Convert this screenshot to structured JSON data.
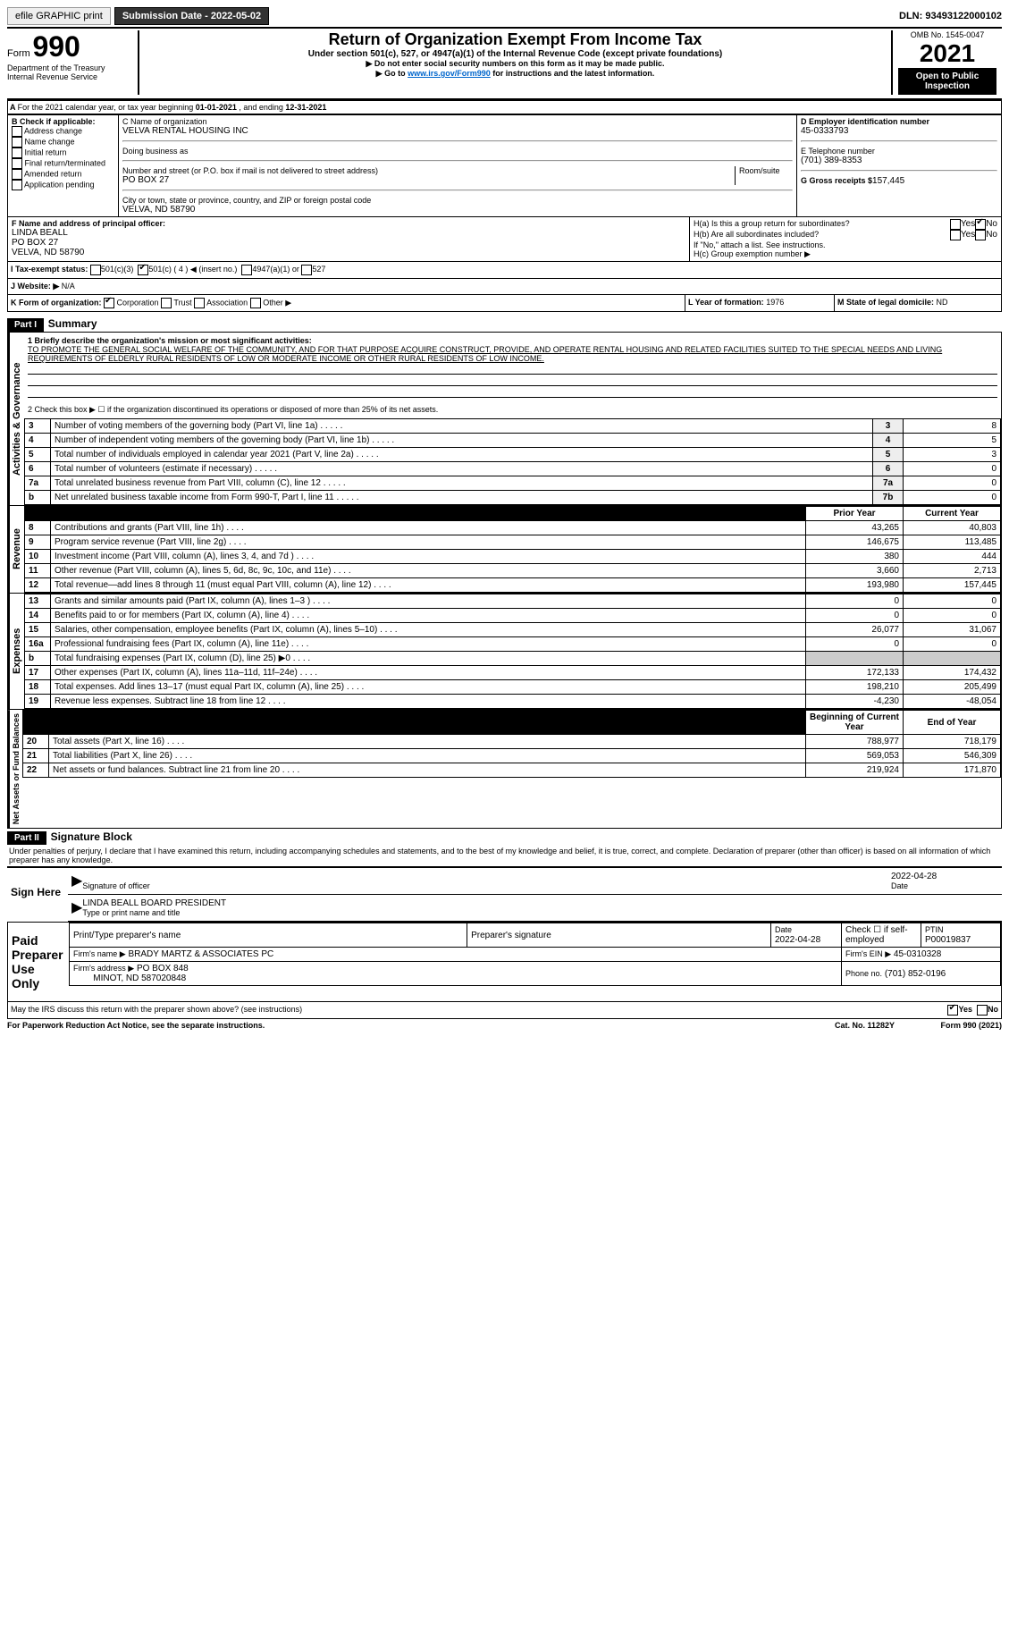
{
  "topbar": {
    "efile": "efile GRAPHIC print",
    "submission_label": "Submission Date - 2022-05-02",
    "dln": "DLN: 93493122000102"
  },
  "header": {
    "form": "Form",
    "form_no": "990",
    "omb": "OMB No. 1545-0047",
    "title": "Return of Organization Exempt From Income Tax",
    "sub1": "Under section 501(c), 527, or 4947(a)(1) of the Internal Revenue Code (except private foundations)",
    "sub2": "▶ Do not enter social security numbers on this form as it may be made public.",
    "sub3_pre": "▶ Go to ",
    "sub3_link": "www.irs.gov/Form990",
    "sub3_post": " for instructions and the latest information.",
    "dept": "Department of the Treasury",
    "irs": "Internal Revenue Service",
    "year": "2021",
    "open": "Open to Public Inspection"
  },
  "period": {
    "label": "For the 2021 calendar year, or tax year beginning ",
    "begin": "01-01-2021",
    "mid": " , and ending ",
    "end": "12-31-2021"
  },
  "checkB": {
    "label": "B Check if applicable:",
    "items": [
      "Address change",
      "Name change",
      "Initial return",
      "Final return/terminated",
      "Amended return",
      "Application pending"
    ]
  },
  "boxC": {
    "label": "C Name of organization",
    "name": "VELVA RENTAL HOUSING INC",
    "dba_label": "Doing business as",
    "addr_label": "Number and street (or P.O. box if mail is not delivered to street address)",
    "room": "Room/suite",
    "addr": "PO BOX 27",
    "city_label": "City or town, state or province, country, and ZIP or foreign postal code",
    "city": "VELVA, ND  58790"
  },
  "boxD": {
    "label": "D Employer identification number",
    "val": "45-0333793"
  },
  "boxE": {
    "label": "E Telephone number",
    "val": "(701) 389-8353"
  },
  "boxG": {
    "label": "G Gross receipts $",
    "val": "157,445"
  },
  "boxF": {
    "label": "F Name and address of principal officer:",
    "name": "LINDA BEALL",
    "addr1": "PO BOX 27",
    "addr2": "VELVA, ND  58790"
  },
  "boxH": {
    "a": "H(a)  Is this a group return for subordinates?",
    "b": "H(b)  Are all subordinates included?",
    "b2": "If \"No,\" attach a list. See instructions.",
    "c": "H(c)  Group exemption number ▶",
    "yes": "Yes",
    "no": "No"
  },
  "boxI": {
    "label": "I  Tax-exempt status:",
    "o1": "501(c)(3)",
    "o2": "501(c) ( 4 ) ◀ (insert no.)",
    "o3": "4947(a)(1) or",
    "o4": "527"
  },
  "boxJ": {
    "label": "J  Website: ▶",
    "val": "N/A"
  },
  "boxK": {
    "label": "K Form of organization:",
    "o1": "Corporation",
    "o2": "Trust",
    "o3": "Association",
    "o4": "Other ▶"
  },
  "boxL": {
    "label": "L Year of formation:",
    "val": "1976"
  },
  "boxM": {
    "label": "M State of legal domicile:",
    "val": "ND"
  },
  "part1": {
    "label": "Part I",
    "title": "Summary"
  },
  "mission": {
    "label": "1  Briefly describe the organization's mission or most significant activities:",
    "text": "TO PROMOTE THE GENERAL SOCIAL WELFARE OF THE COMMUNITY, AND FOR THAT PURPOSE ACQUIRE CONSTRUCT, PROVIDE, AND OPERATE RENTAL HOUSING AND RELATED FACILITIES SUITED TO THE SPECIAL NEEDS AND LIVING REQUIREMENTS OF ELDERLY RURAL RESIDENTS OF LOW OR MODERATE INCOME OR OTHER RURAL RESIDENTS OF LOW INCOME."
  },
  "gov": {
    "vert": "Activities & Governance",
    "line2": "2  Check this box ▶ ☐ if the organization discontinued its operations or disposed of more than 25% of its net assets.",
    "rows": [
      {
        "n": "3",
        "t": "Number of voting members of the governing body (Part VI, line 1a)",
        "box": "3",
        "v": "8"
      },
      {
        "n": "4",
        "t": "Number of independent voting members of the governing body (Part VI, line 1b)",
        "box": "4",
        "v": "5"
      },
      {
        "n": "5",
        "t": "Total number of individuals employed in calendar year 2021 (Part V, line 2a)",
        "box": "5",
        "v": "3"
      },
      {
        "n": "6",
        "t": "Total number of volunteers (estimate if necessary)",
        "box": "6",
        "v": "0"
      },
      {
        "n": "7a",
        "t": "Total unrelated business revenue from Part VIII, column (C), line 12",
        "box": "7a",
        "v": "0"
      },
      {
        "n": "b",
        "t": "Net unrelated business taxable income from Form 990-T, Part I, line 11",
        "box": "7b",
        "v": "0"
      }
    ]
  },
  "rev": {
    "vert": "Revenue",
    "prior": "Prior Year",
    "curr": "Current Year",
    "rows": [
      {
        "n": "8",
        "t": "Contributions and grants (Part VIII, line 1h)",
        "p": "43,265",
        "c": "40,803"
      },
      {
        "n": "9",
        "t": "Program service revenue (Part VIII, line 2g)",
        "p": "146,675",
        "c": "113,485"
      },
      {
        "n": "10",
        "t": "Investment income (Part VIII, column (A), lines 3, 4, and 7d )",
        "p": "380",
        "c": "444"
      },
      {
        "n": "11",
        "t": "Other revenue (Part VIII, column (A), lines 5, 6d, 8c, 9c, 10c, and 11e)",
        "p": "3,660",
        "c": "2,713"
      },
      {
        "n": "12",
        "t": "Total revenue—add lines 8 through 11 (must equal Part VIII, column (A), line 12)",
        "p": "193,980",
        "c": "157,445"
      }
    ]
  },
  "exp": {
    "vert": "Expenses",
    "rows": [
      {
        "n": "13",
        "t": "Grants and similar amounts paid (Part IX, column (A), lines 1–3 )",
        "p": "0",
        "c": "0"
      },
      {
        "n": "14",
        "t": "Benefits paid to or for members (Part IX, column (A), line 4)",
        "p": "0",
        "c": "0"
      },
      {
        "n": "15",
        "t": "Salaries, other compensation, employee benefits (Part IX, column (A), lines 5–10)",
        "p": "26,077",
        "c": "31,067"
      },
      {
        "n": "16a",
        "t": "Professional fundraising fees (Part IX, column (A), line 11e)",
        "p": "0",
        "c": "0"
      },
      {
        "n": "b",
        "t": "Total fundraising expenses (Part IX, column (D), line 25) ▶0",
        "p": "",
        "c": ""
      },
      {
        "n": "17",
        "t": "Other expenses (Part IX, column (A), lines 11a–11d, 11f–24e)",
        "p": "172,133",
        "c": "174,432"
      },
      {
        "n": "18",
        "t": "Total expenses. Add lines 13–17 (must equal Part IX, column (A), line 25)",
        "p": "198,210",
        "c": "205,499"
      },
      {
        "n": "19",
        "t": "Revenue less expenses. Subtract line 18 from line 12",
        "p": "-4,230",
        "c": "-48,054"
      }
    ]
  },
  "net": {
    "vert": "Net Assets or Fund Balances",
    "begin": "Beginning of Current Year",
    "end": "End of Year",
    "rows": [
      {
        "n": "20",
        "t": "Total assets (Part X, line 16)",
        "p": "788,977",
        "c": "718,179"
      },
      {
        "n": "21",
        "t": "Total liabilities (Part X, line 26)",
        "p": "569,053",
        "c": "546,309"
      },
      {
        "n": "22",
        "t": "Net assets or fund balances. Subtract line 21 from line 20",
        "p": "219,924",
        "c": "171,870"
      }
    ]
  },
  "part2": {
    "label": "Part II",
    "title": "Signature Block",
    "decl": "Under penalties of perjury, I declare that I have examined this return, including accompanying schedules and statements, and to the best of my knowledge and belief, it is true, correct, and complete. Declaration of preparer (other than officer) is based on all information of which preparer has any knowledge."
  },
  "sign": {
    "here": "Sign Here",
    "sig_label": "Signature of officer",
    "date_label": "Date",
    "date": "2022-04-28",
    "name": "LINDA BEALL  BOARD PRESIDENT",
    "name_label": "Type or print name and title"
  },
  "paid": {
    "title": "Paid Preparer Use Only",
    "h1": "Print/Type preparer's name",
    "h2": "Preparer's signature",
    "h3": "Date",
    "h4": "Check ☐ if self-employed",
    "h5": "PTIN",
    "date": "2022-04-28",
    "ptin": "P00019837",
    "firm_label": "Firm's name  ▶",
    "firm": "BRADY MARTZ & ASSOCIATES PC",
    "ein_label": "Firm's EIN ▶",
    "ein": "45-0310328",
    "addr_label": "Firm's address ▶",
    "addr1": "PO BOX 848",
    "addr2": "MINOT, ND  587020848",
    "phone_label": "Phone no.",
    "phone": "(701) 852-0196"
  },
  "discuss": {
    "q": "May the IRS discuss this return with the preparer shown above? (see instructions)",
    "yes": "Yes",
    "no": "No"
  },
  "footer": {
    "left": "For Paperwork Reduction Act Notice, see the separate instructions.",
    "mid": "Cat. No. 11282Y",
    "right": "Form 990 (2021)"
  }
}
